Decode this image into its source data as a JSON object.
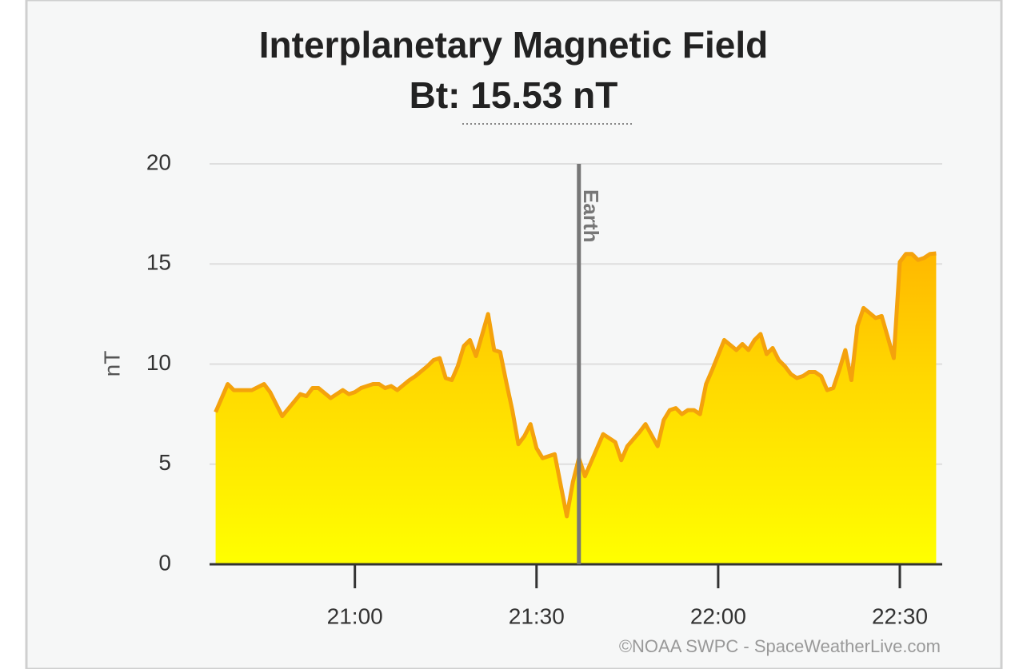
{
  "chart_data": {
    "type": "area",
    "title": "Interplanetary Magnetic Field",
    "subtitle": "Bt: 15.53 nT",
    "y_label": "nT",
    "credit": "©NOAA SWPC - SpaceWeatherLive.com",
    "x": [
      "20:37",
      "20:39",
      "20:40",
      "20:43",
      "20:45",
      "20:46",
      "20:48",
      "20:51",
      "20:52",
      "20:53",
      "20:54",
      "20:56",
      "20:58",
      "20:59",
      "21:00",
      "21:01",
      "21:03",
      "21:04",
      "21:05",
      "21:06",
      "21:07",
      "21:09",
      "21:10",
      "21:12",
      "21:13",
      "21:14",
      "21:15",
      "21:16",
      "21:17",
      "21:18",
      "21:19",
      "21:20",
      "21:22",
      "21:23",
      "21:24",
      "21:25",
      "21:26",
      "21:27",
      "21:28",
      "21:29",
      "21:30",
      "21:31",
      "21:33",
      "21:35",
      "21:36",
      "21:37",
      "21:38",
      "21:39",
      "21:41",
      "21:42",
      "21:43",
      "21:44",
      "21:45",
      "21:47",
      "21:48",
      "21:50",
      "21:51",
      "21:52",
      "21:53",
      "21:54",
      "21:55",
      "21:56",
      "21:57",
      "21:58",
      "21:59",
      "22:01",
      "22:03",
      "22:04",
      "22:05",
      "22:06",
      "22:07",
      "22:08",
      "22:09",
      "22:10",
      "22:11",
      "22:12",
      "22:13",
      "22:14",
      "22:15",
      "22:16",
      "22:17",
      "22:18",
      "22:19",
      "22:20",
      "22:21",
      "22:22",
      "22:23",
      "22:24",
      "22:26",
      "22:27",
      "22:29",
      "22:30",
      "22:31",
      "22:32",
      "22:33",
      "22:34",
      "22:35",
      "22:36"
    ],
    "series": [
      {
        "name": "Bt",
        "color": "#f4a20c",
        "values": [
          7.6,
          9.0,
          8.7,
          8.7,
          9.0,
          8.6,
          7.4,
          8.5,
          8.4,
          8.8,
          8.8,
          8.3,
          8.7,
          8.5,
          8.6,
          8.8,
          9.0,
          9.0,
          8.8,
          8.9,
          8.7,
          9.2,
          9.4,
          9.9,
          10.2,
          10.3,
          9.3,
          9.2,
          9.9,
          10.9,
          11.2,
          10.4,
          12.5,
          10.7,
          10.6,
          9.1,
          7.7,
          6.0,
          6.4,
          7.0,
          5.8,
          5.3,
          5.5,
          2.4,
          4.1,
          5.3,
          4.4,
          5.1,
          6.5,
          6.3,
          6.1,
          5.2,
          5.9,
          6.6,
          7.0,
          5.9,
          7.2,
          7.7,
          7.8,
          7.5,
          7.7,
          7.7,
          7.5,
          9.0,
          9.7,
          11.2,
          10.7,
          11.0,
          10.7,
          11.2,
          11.5,
          10.5,
          10.8,
          10.2,
          9.9,
          9.5,
          9.3,
          9.4,
          9.6,
          9.6,
          9.4,
          8.7,
          8.8,
          9.7,
          10.7,
          9.2,
          11.9,
          12.8,
          12.3,
          12.4,
          10.3,
          15.1,
          15.5,
          15.5,
          15.2,
          15.3,
          15.5,
          15.53
        ]
      }
    ],
    "xlim": [
      "20:36",
      "22:37"
    ],
    "xticks": [
      "21:00",
      "21:30",
      "22:00",
      "22:30"
    ],
    "ylim": [
      0,
      20
    ],
    "yticks": [
      0,
      5,
      10,
      15,
      20
    ],
    "grid": true,
    "annotations": [
      {
        "x": "21:37",
        "label": "Earth"
      }
    ]
  }
}
